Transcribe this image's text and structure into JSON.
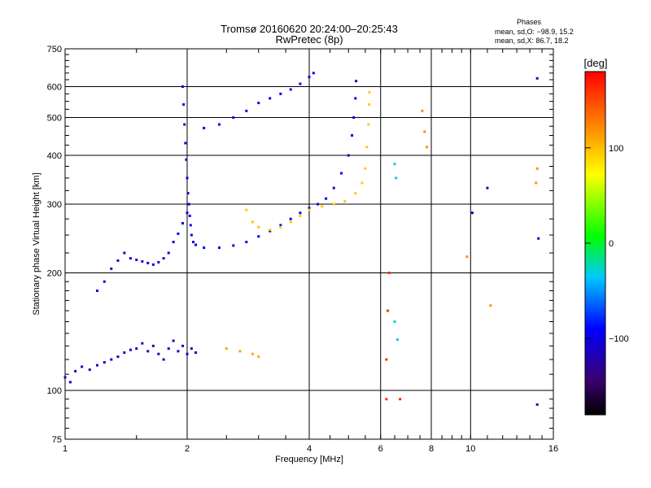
{
  "title_line1": "Tromsø 20160620 20:24:00–20:25:43",
  "title_line2": "RwPretec (8p)",
  "phases_heading": "Phases",
  "phases_o": "mean, sd,O: −98.9, 15.2",
  "phases_x": "mean, sd,X:  86.7, 18.2",
  "colorbar": {
    "unit_label": "[deg]",
    "ticks": [
      {
        "value": 100,
        "label": "100"
      },
      {
        "value": 0,
        "label": "0"
      },
      {
        "value": -100,
        "label": "−100"
      }
    ],
    "range": [
      -180,
      180
    ]
  },
  "chart_data": {
    "type": "scatter",
    "xlabel": "Frequency [MHz]",
    "ylabel": "Stationary phase Virtual Height [km]",
    "xscale": "log",
    "yscale": "log",
    "xlim": [
      1,
      16
    ],
    "ylim": [
      75,
      750
    ],
    "x_ticks": [
      {
        "value": 1,
        "label": "1"
      },
      {
        "value": 2,
        "label": "2"
      },
      {
        "value": 4,
        "label": "4"
      },
      {
        "value": 6,
        "label": "6"
      },
      {
        "value": 8,
        "label": "8"
      },
      {
        "value": 10,
        "label": "10"
      },
      {
        "value": 16,
        "label": "16"
      }
    ],
    "x_gridlines": [
      2,
      4,
      6,
      8,
      10
    ],
    "y_ticks": [
      {
        "value": 75,
        "label": "75"
      },
      {
        "value": 100,
        "label": "100"
      },
      {
        "value": 200,
        "label": "200"
      },
      {
        "value": 300,
        "label": "300"
      },
      {
        "value": 400,
        "label": "400"
      },
      {
        "value": 500,
        "label": "500"
      },
      {
        "value": 600,
        "label": "600"
      },
      {
        "value": 750,
        "label": "750"
      }
    ],
    "y_gridlines": [
      100,
      200,
      300,
      400,
      500,
      600
    ],
    "color_by": "phase [deg]",
    "series": [
      {
        "phase": -110,
        "points": [
          [
            1.0,
            108
          ],
          [
            1.03,
            105
          ],
          [
            1.06,
            112
          ],
          [
            1.1,
            115
          ],
          [
            1.15,
            113
          ],
          [
            1.2,
            116
          ],
          [
            1.25,
            118
          ],
          [
            1.3,
            120
          ],
          [
            1.35,
            122
          ],
          [
            1.4,
            125
          ],
          [
            1.45,
            127
          ],
          [
            1.5,
            128
          ],
          [
            1.55,
            132
          ],
          [
            1.6,
            126
          ],
          [
            1.65,
            130
          ],
          [
            1.7,
            124
          ],
          [
            1.75,
            120
          ],
          [
            1.8,
            128
          ],
          [
            1.85,
            134
          ],
          [
            1.9,
            126
          ],
          [
            1.95,
            130
          ],
          [
            2.0,
            124
          ],
          [
            2.05,
            128
          ],
          [
            2.1,
            125
          ]
        ]
      },
      {
        "phase": -105,
        "points": [
          [
            1.2,
            180
          ],
          [
            1.25,
            190
          ],
          [
            1.3,
            205
          ],
          [
            1.35,
            215
          ],
          [
            1.4,
            225
          ],
          [
            1.45,
            218
          ],
          [
            1.5,
            216
          ],
          [
            1.55,
            214
          ],
          [
            1.6,
            212
          ],
          [
            1.65,
            210
          ],
          [
            1.7,
            213
          ],
          [
            1.75,
            218
          ],
          [
            1.8,
            225
          ],
          [
            1.85,
            240
          ],
          [
            1.9,
            252
          ],
          [
            1.95,
            268
          ],
          [
            2.0,
            285
          ]
        ]
      },
      {
        "phase": -100,
        "points": [
          [
            1.95,
            600
          ],
          [
            1.96,
            540
          ],
          [
            1.97,
            480
          ],
          [
            1.98,
            430
          ],
          [
            1.99,
            390
          ],
          [
            2.0,
            350
          ],
          [
            2.01,
            320
          ],
          [
            2.02,
            300
          ],
          [
            2.03,
            280
          ],
          [
            2.04,
            265
          ],
          [
            2.05,
            250
          ],
          [
            2.07,
            240
          ],
          [
            2.1,
            236
          ],
          [
            2.2,
            232
          ],
          [
            2.4,
            232
          ],
          [
            2.6,
            235
          ],
          [
            2.8,
            240
          ],
          [
            3.0,
            248
          ],
          [
            3.2,
            256
          ],
          [
            3.4,
            265
          ],
          [
            3.6,
            275
          ],
          [
            3.8,
            285
          ],
          [
            4.0,
            293
          ],
          [
            4.2,
            300
          ],
          [
            4.4,
            310
          ],
          [
            4.6,
            330
          ],
          [
            4.8,
            360
          ],
          [
            5.0,
            400
          ],
          [
            5.1,
            450
          ],
          [
            5.15,
            500
          ],
          [
            5.2,
            560
          ],
          [
            5.22,
            620
          ]
        ]
      },
      {
        "phase": -98,
        "points": [
          [
            2.2,
            470
          ],
          [
            2.4,
            480
          ],
          [
            2.6,
            500
          ],
          [
            2.8,
            520
          ],
          [
            3.0,
            545
          ],
          [
            3.2,
            560
          ],
          [
            3.4,
            575
          ],
          [
            3.6,
            590
          ],
          [
            3.8,
            610
          ],
          [
            4.0,
            635
          ],
          [
            4.1,
            650
          ]
        ]
      },
      {
        "phase": 95,
        "points": [
          [
            2.8,
            290
          ],
          [
            2.9,
            270
          ],
          [
            3.0,
            262
          ],
          [
            3.2,
            258
          ],
          [
            3.4,
            262
          ],
          [
            3.6,
            270
          ],
          [
            3.8,
            280
          ],
          [
            4.0,
            290
          ],
          [
            4.3,
            296
          ],
          [
            4.6,
            300
          ],
          [
            4.9,
            305
          ],
          [
            5.2,
            320
          ],
          [
            5.4,
            340
          ],
          [
            5.5,
            370
          ],
          [
            5.55,
            420
          ],
          [
            5.6,
            480
          ],
          [
            5.62,
            540
          ],
          [
            5.63,
            580
          ]
        ]
      },
      {
        "phase": 110,
        "points": [
          [
            2.5,
            128
          ],
          [
            2.7,
            126
          ],
          [
            2.9,
            124
          ],
          [
            3.0,
            122
          ]
        ]
      },
      {
        "phase": 160,
        "points": [
          [
            6.2,
            120
          ],
          [
            6.25,
            160
          ],
          [
            6.3,
            200
          ],
          [
            6.2,
            95
          ],
          [
            6.7,
            95
          ]
        ]
      },
      {
        "phase": -30,
        "points": [
          [
            6.5,
            150
          ],
          [
            6.6,
            135
          ],
          [
            6.5,
            380
          ],
          [
            6.55,
            350
          ]
        ]
      },
      {
        "phase": -115,
        "points": [
          [
            14.6,
            630
          ],
          [
            14.7,
            245
          ],
          [
            14.6,
            92
          ],
          [
            10.1,
            285
          ],
          [
            11.0,
            330
          ]
        ]
      },
      {
        "phase": 120,
        "points": [
          [
            7.6,
            520
          ],
          [
            7.7,
            460
          ],
          [
            7.8,
            420
          ],
          [
            14.6,
            370
          ],
          [
            14.5,
            340
          ],
          [
            11.2,
            165
          ],
          [
            9.8,
            220
          ]
        ]
      }
    ]
  }
}
